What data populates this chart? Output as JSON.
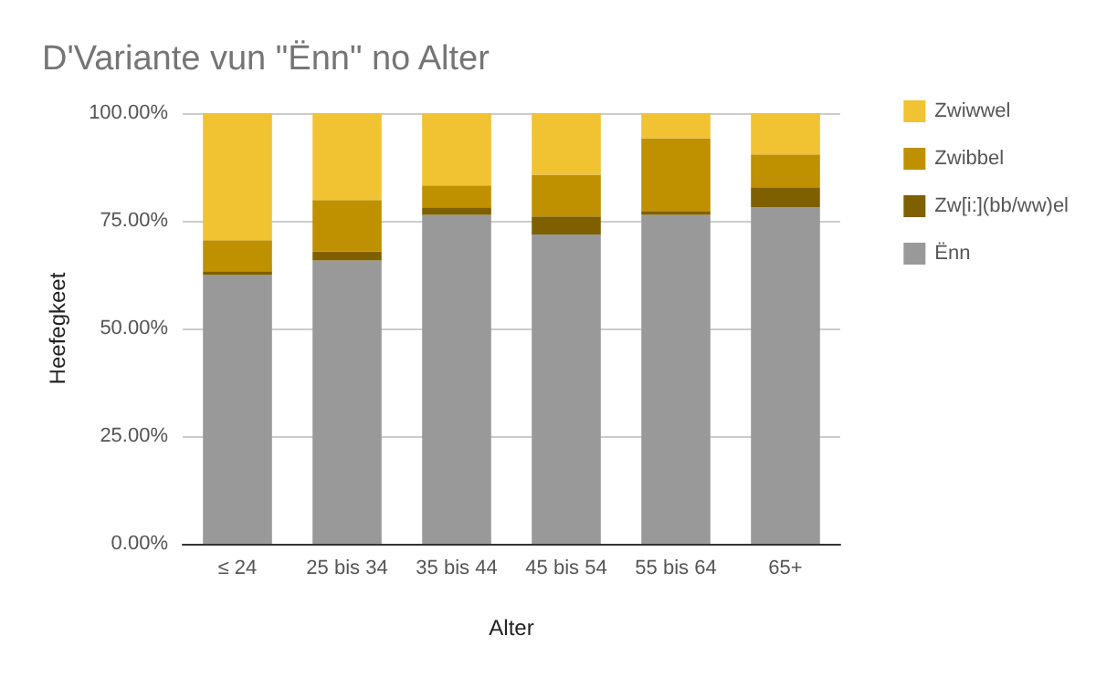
{
  "chart_data": {
    "type": "bar",
    "title": "D'Variante vun \"Ënn\" no Alter",
    "xlabel": "Alter",
    "ylabel": "Heefegkeet",
    "categories": [
      "≤ 24",
      "25 bis 34",
      "35 bis 44",
      "45 bis 54",
      "55 bis 64",
      "65+"
    ],
    "series": [
      {
        "name": "Ënn",
        "color": "#999999",
        "values": [
          62.4,
          65.8,
          76.4,
          71.8,
          76.4,
          78.1
        ]
      },
      {
        "name": "Zw[i:](bb/ww)el",
        "color": "#7f6000",
        "values": [
          0.9,
          2.1,
          1.7,
          4.2,
          0.9,
          4.7
        ]
      },
      {
        "name": "Zwibbel",
        "color": "#bf9000",
        "values": [
          7.2,
          11.9,
          5.1,
          9.7,
          16.9,
          7.6
        ]
      },
      {
        "name": "Zwiwwel",
        "color": "#f1c232",
        "values": [
          29.5,
          20.2,
          16.8,
          14.3,
          5.8,
          9.6
        ]
      }
    ],
    "stacked": true,
    "ylim": [
      0,
      100
    ],
    "yticks": [
      {
        "value": 0,
        "label": "0.00%"
      },
      {
        "value": 25,
        "label": "25.00%"
      },
      {
        "value": 50,
        "label": "50.00%"
      },
      {
        "value": 75,
        "label": "75.00%"
      },
      {
        "value": 100,
        "label": "100.00%"
      }
    ],
    "grid": "y",
    "legend": "right"
  }
}
